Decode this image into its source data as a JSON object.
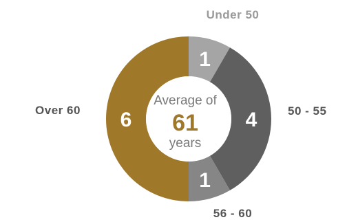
{
  "chart_data": {
    "type": "pie",
    "variant": "donut",
    "categories": [
      "Under 50",
      "50 - 55",
      "56 - 60",
      "Over 60"
    ],
    "values": [
      1,
      4,
      1,
      6
    ],
    "colors": [
      "#a5a5a5",
      "#5f5f5f",
      "#868686",
      "#a0782a"
    ],
    "center_text": {
      "line1": "Average of",
      "value": "61",
      "line2": "years"
    }
  }
}
